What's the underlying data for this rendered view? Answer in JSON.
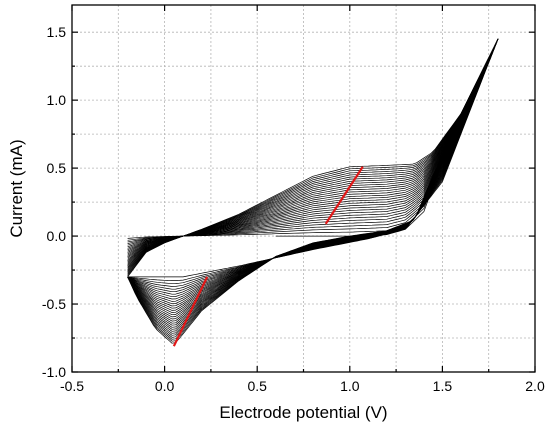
{
  "chart_data": {
    "type": "line",
    "title": "",
    "xlabel": "Electrode potential (V)",
    "ylabel": "Current (mA)",
    "xlim": [
      -0.5,
      2.0
    ],
    "ylim": [
      -1.0,
      1.7
    ],
    "xticks": [
      -0.5,
      0.0,
      0.5,
      1.0,
      1.5,
      2.0
    ],
    "xtick_labels": [
      "-0.5",
      "0.0",
      "0.5",
      "1.0",
      "1.5",
      "2.0"
    ],
    "yticks": [
      -1.0,
      -0.5,
      0.0,
      0.5,
      1.0,
      1.5
    ],
    "ytick_labels": [
      "-1.0",
      "-0.5",
      "0.0",
      "0.5",
      "1.0",
      "1.5"
    ],
    "grid": true,
    "line_color": "#000000",
    "arrow_color": "#e01818",
    "potential_window": [
      -0.2,
      1.8
    ],
    "n_cycles": 30,
    "first_cycle": {
      "anodic": [
        [
          0.6,
          0.0
        ],
        [
          1.0,
          0.0
        ],
        [
          1.2,
          0.01
        ],
        [
          1.3,
          0.05
        ],
        [
          1.4,
          0.18
        ],
        [
          1.5,
          0.55
        ],
        [
          1.6,
          0.85
        ],
        [
          1.7,
          1.15
        ],
        [
          1.8,
          1.45
        ]
      ],
      "cathodic": [
        [
          1.8,
          1.45
        ],
        [
          1.5,
          0.4
        ],
        [
          1.3,
          0.05
        ],
        [
          1.1,
          -0.02
        ],
        [
          0.8,
          -0.1
        ],
        [
          0.4,
          -0.22
        ],
        [
          0.1,
          -0.3
        ],
        [
          -0.05,
          -0.3
        ],
        [
          -0.2,
          -0.3
        ]
      ]
    },
    "last_cycle": {
      "anodic": [
        [
          -0.2,
          -0.3
        ],
        [
          -0.1,
          -0.12
        ],
        [
          0.0,
          -0.05
        ],
        [
          0.2,
          0.05
        ],
        [
          0.4,
          0.16
        ],
        [
          0.6,
          0.3
        ],
        [
          0.8,
          0.44
        ],
        [
          1.0,
          0.51
        ],
        [
          1.2,
          0.52
        ],
        [
          1.35,
          0.53
        ],
        [
          1.45,
          0.62
        ],
        [
          1.6,
          0.9
        ],
        [
          1.8,
          1.45
        ]
      ],
      "cathodic": [
        [
          1.8,
          1.45
        ],
        [
          1.6,
          0.85
        ],
        [
          1.45,
          0.45
        ],
        [
          1.35,
          0.12
        ],
        [
          1.2,
          0.04
        ],
        [
          1.0,
          0.0
        ],
        [
          0.8,
          -0.05
        ],
        [
          0.6,
          -0.15
        ],
        [
          0.4,
          -0.33
        ],
        [
          0.2,
          -0.55
        ],
        [
          0.1,
          -0.72
        ],
        [
          0.05,
          -0.8
        ],
        [
          -0.05,
          -0.68
        ],
        [
          -0.15,
          -0.45
        ],
        [
          -0.2,
          -0.3
        ]
      ]
    },
    "annotations": [
      {
        "type": "arrow",
        "from": [
          0.87,
          0.09
        ],
        "to": [
          1.07,
          0.51
        ]
      },
      {
        "type": "arrow",
        "from": [
          0.23,
          -0.3
        ],
        "to": [
          0.05,
          -0.81
        ]
      }
    ]
  }
}
